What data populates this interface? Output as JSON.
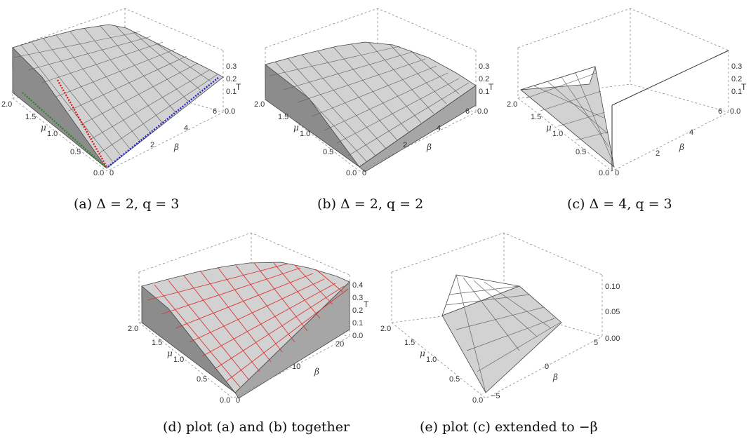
{
  "panels": [
    {
      "id": "a",
      "caption": "(a) Δ = 2, q = 3",
      "mu_label": "μ",
      "beta_label": "β",
      "t_label": "T",
      "mu_ticks": [
        "2.0",
        "1.5",
        "1.0",
        "0.5",
        "0.0"
      ],
      "beta_ticks": [
        "0",
        "2",
        "4",
        "6"
      ],
      "t_ticks": [
        "0.3",
        "0.2",
        "0.1",
        "0.0"
      ]
    },
    {
      "id": "b",
      "caption": "(b) Δ = 2, q = 2",
      "mu_label": "μ",
      "beta_label": "β",
      "t_label": "T",
      "mu_ticks": [
        "2.0",
        "1.5",
        "1.0",
        "0.5",
        "0.0"
      ],
      "beta_ticks": [
        "0",
        "2",
        "4",
        "6"
      ],
      "t_ticks": [
        "0.3",
        "0.2",
        "0.1",
        "0.0"
      ]
    },
    {
      "id": "c",
      "caption": "(c) Δ = 4, q = 3",
      "mu_label": "μ",
      "beta_label": "β",
      "t_label": "T",
      "mu_ticks": [
        "2.0",
        "1.5",
        "1.0",
        "0.5",
        "0.0"
      ],
      "beta_ticks": [
        "0",
        "2",
        "4",
        "6"
      ],
      "t_ticks": [
        "0.3",
        "0.2",
        "0.1",
        "0.0"
      ]
    },
    {
      "id": "d",
      "caption": "(d) plot (a) and (b) together",
      "mu_label": "μ",
      "beta_label": "β",
      "t_label": "T",
      "mu_ticks": [
        "2.0",
        "1.5",
        "1.0",
        "0.5",
        "0.0"
      ],
      "beta_ticks": [
        "0",
        "10",
        "20"
      ],
      "t_ticks": [
        "0.4",
        "0.3",
        "0.2",
        "0.1",
        "0.0"
      ]
    },
    {
      "id": "e",
      "caption": "(e) plot (c) extended to −β",
      "mu_label": "μ",
      "beta_label": "β",
      "t_label": "T",
      "mu_ticks": [
        "2.0",
        "1.5",
        "1.0",
        "0.5",
        "0.0"
      ],
      "beta_ticks": [
        "−5",
        "0",
        "5"
      ],
      "t_ticks": [
        "0.10",
        "0.05",
        "0.00"
      ]
    }
  ],
  "colors": {
    "surface": "#d2d2d2",
    "mesh_red": "#dd3333",
    "dotted_red": "#dd1111",
    "dotted_green": "#228b22",
    "dotted_blue": "#2222cc"
  }
}
